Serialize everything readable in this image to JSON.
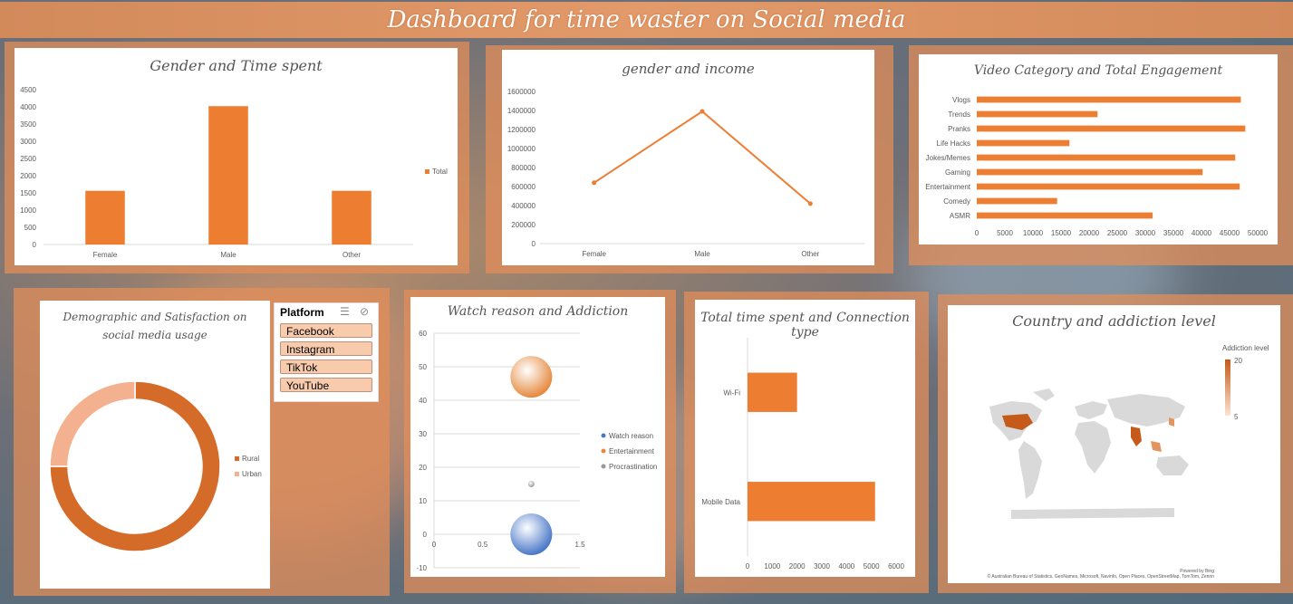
{
  "page_title": "Dashboard for time waster on Social media",
  "slicer": {
    "title": "Platform",
    "options": [
      "Facebook",
      "Instagram",
      "TikTok",
      "YouTube"
    ]
  },
  "chart_data": [
    {
      "type": "bar",
      "title": "Gender and Time spent",
      "categories": [
        "Female",
        "Male",
        "Other"
      ],
      "series": [
        {
          "name": "Total",
          "values": [
            1560,
            4020,
            1560
          ]
        }
      ],
      "ylim": [
        0,
        4500
      ],
      "yticks": [
        0,
        500,
        1000,
        1500,
        2000,
        2500,
        3000,
        3500,
        4000,
        4500
      ],
      "legend": "right",
      "color": "#ed7d31"
    },
    {
      "type": "line",
      "title": "gender and income",
      "categories": [
        "Female",
        "Male",
        "Other"
      ],
      "values": [
        640000,
        1390000,
        420000
      ],
      "ylim": [
        0,
        1600000
      ],
      "yticks": [
        0,
        200000,
        400000,
        600000,
        800000,
        1000000,
        1200000,
        1400000,
        1600000
      ],
      "color": "#ed7d31"
    },
    {
      "type": "bar",
      "orientation": "horizontal",
      "title": "Video Category and Total Engagement",
      "categories": [
        "Vlogs",
        "Trends",
        "Pranks",
        "Life Hacks",
        "Jokes/Memes",
        "Gaming",
        "Entertainment",
        "Comedy",
        "ASMR"
      ],
      "values": [
        47000,
        21500,
        47800,
        16500,
        46000,
        40200,
        46800,
        14300,
        31300
      ],
      "xlim": [
        0,
        50000
      ],
      "xticks": [
        0,
        5000,
        10000,
        15000,
        20000,
        25000,
        30000,
        35000,
        40000,
        45000,
        50000
      ],
      "color": "#ed7d31"
    },
    {
      "type": "pie",
      "subtype": "donut",
      "title": "Demographic and Satisfaction on social media usage",
      "categories": [
        "Rural",
        "Urban"
      ],
      "values": [
        75,
        25
      ],
      "colors": [
        "#d56b28",
        "#f4b18f"
      ],
      "legend": "right"
    },
    {
      "type": "scatter",
      "subtype": "bubble",
      "title": "Watch reason and Addiction",
      "series": [
        {
          "name": "Watch reason",
          "x": [
            1
          ],
          "y": [
            0
          ],
          "size": 20,
          "color": "#4a78c8"
        },
        {
          "name": "Entertainment",
          "x": [
            1
          ],
          "y": [
            47
          ],
          "size": 20,
          "color": "#e68a40"
        },
        {
          "name": "Procrastination",
          "x": [
            1
          ],
          "y": [
            15
          ],
          "size": 3,
          "color": "#999999"
        }
      ],
      "xlim": [
        0,
        1.5
      ],
      "xticks": [
        0,
        0.5,
        1,
        1.5
      ],
      "ylim": [
        -10,
        60
      ],
      "yticks": [
        -10,
        0,
        10,
        20,
        30,
        40,
        50,
        60
      ],
      "legend": "right"
    },
    {
      "type": "bar",
      "orientation": "horizontal",
      "title": "Total time spent and Connection type",
      "categories": [
        "Wi-Fi",
        "Mobile Data"
      ],
      "values": [
        2000,
        5150
      ],
      "xlim": [
        0,
        6000
      ],
      "xticks": [
        0,
        1000,
        2000,
        3000,
        4000,
        5000,
        6000
      ],
      "color": "#ed7d31"
    },
    {
      "type": "map",
      "title": "Country and addiction level",
      "legend_title": "Addiction level",
      "scale": [
        5,
        20
      ],
      "colors": [
        "#fbe3d3",
        "#c55a1a"
      ],
      "credit_top": "Powered by Bing",
      "credit": "© Australian Bureau of Statistics, GeoNames, Microsoft, Navinfo, Open Places, OpenStreetMap, TomTom, Zenrin"
    }
  ]
}
